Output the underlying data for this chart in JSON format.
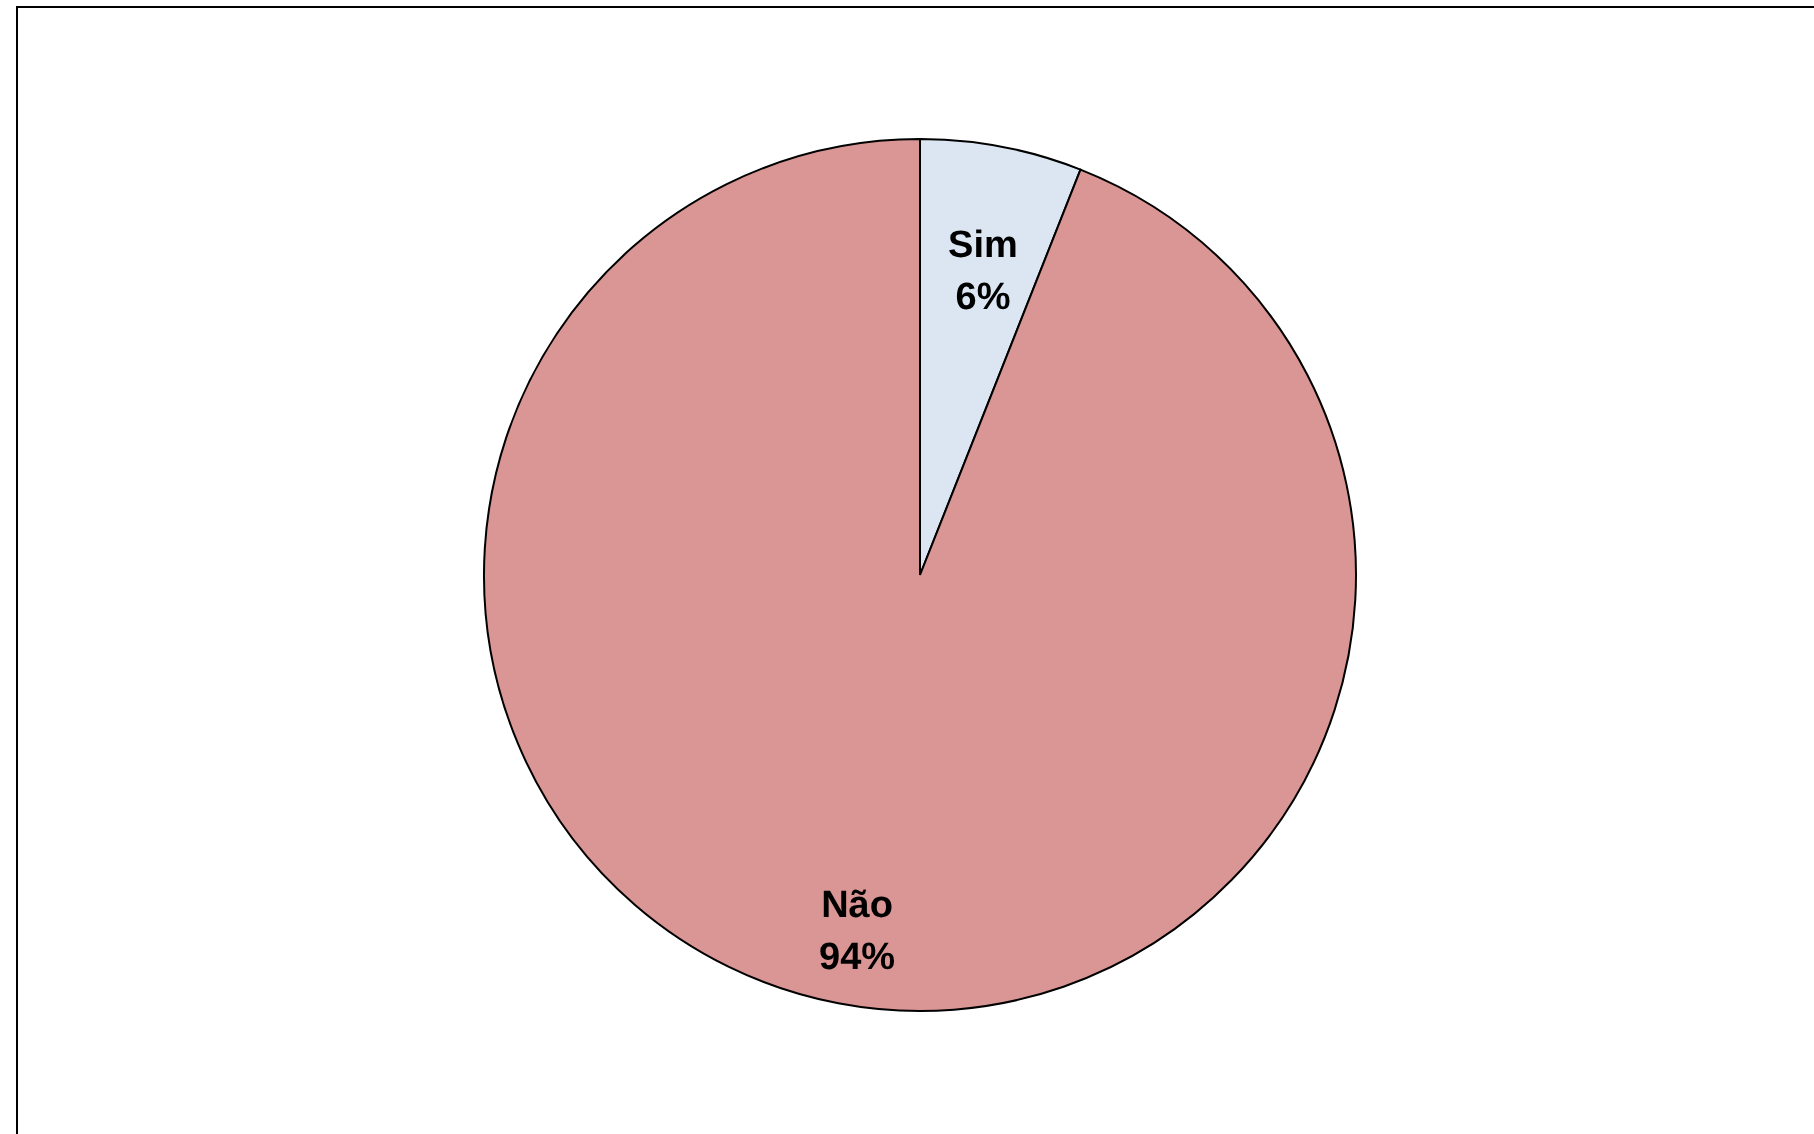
{
  "chart_data": {
    "type": "pie",
    "categories": [
      "Sim",
      "Não"
    ],
    "values": [
      6,
      94
    ],
    "colors": [
      "#dce6f2",
      "#d99694"
    ],
    "value_labels": [
      "6%",
      "94%"
    ],
    "legend": false
  }
}
